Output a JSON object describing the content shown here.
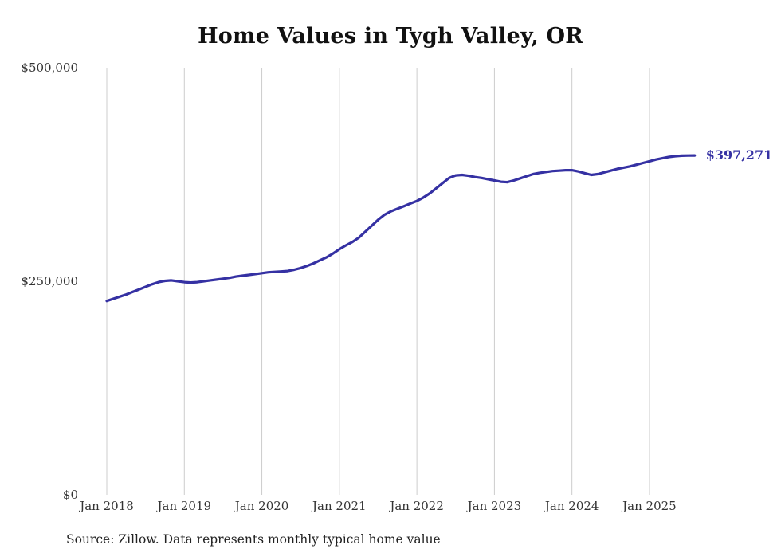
{
  "chart_data": {
    "type": "line",
    "title": "Home Values in Tygh Valley, OR",
    "source_note": "Source: Zillow. Data represents monthly typical home value",
    "end_label": "$397,271",
    "final_value": 397271,
    "x_start": "Jan 2018",
    "x_frequency": "monthly",
    "x_tick_labels": [
      "Jan 2018",
      "Jan 2019",
      "Jan 2020",
      "Jan 2021",
      "Jan 2022",
      "Jan 2023",
      "Jan 2024",
      "Jan 2025"
    ],
    "y_tick_labels": [
      "$0",
      "$250,000",
      "$500,000"
    ],
    "ylim": [
      0,
      500000
    ],
    "grid": "vertical-only",
    "legend": "none",
    "line_color": "#3531a3",
    "grid_color": "#cccccc",
    "text_color": "#333333",
    "series": [
      {
        "name": "Typical home value",
        "values": [
          227000,
          229500,
          232000,
          234500,
          237500,
          240500,
          243500,
          246500,
          249000,
          250500,
          251000,
          250000,
          249000,
          248500,
          249000,
          250000,
          251000,
          252000,
          253000,
          254000,
          255500,
          256500,
          257500,
          258500,
          259500,
          260500,
          261000,
          261500,
          262000,
          263500,
          265500,
          268000,
          271000,
          274500,
          278000,
          282500,
          287500,
          292000,
          296000,
          301000,
          308000,
          315000,
          322000,
          328000,
          332000,
          335000,
          338000,
          341000,
          344000,
          348000,
          353000,
          359000,
          365000,
          371000,
          374000,
          374500,
          373500,
          372000,
          371000,
          369500,
          368000,
          366500,
          366000,
          368000,
          370500,
          373000,
          375500,
          377000,
          378000,
          379000,
          379500,
          380000,
          380000,
          378500,
          376500,
          374500,
          375500,
          377500,
          379500,
          381500,
          383000,
          384500,
          386500,
          388500,
          390500,
          392500,
          394000,
          395500,
          396500,
          397000,
          397200,
          397271
        ]
      }
    ]
  }
}
